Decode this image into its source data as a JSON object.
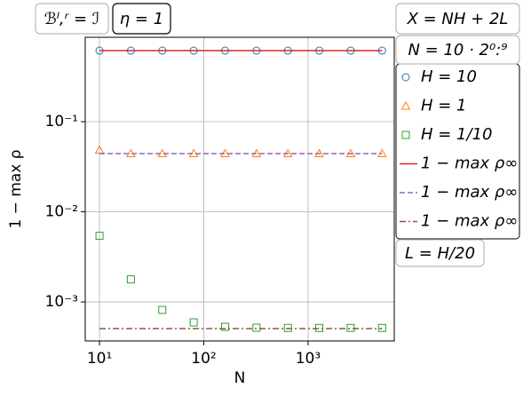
{
  "chart_data": {
    "type": "scatter",
    "xlabel": "N",
    "ylabel": "1 − max ρ",
    "xscale": "log",
    "yscale": "log",
    "xlim": [
      7.3,
      6700
    ],
    "ylim": [
      0.000369,
      0.863
    ],
    "xticks": [
      {
        "value": 10,
        "label": "10¹"
      },
      {
        "value": 100,
        "label": "10²"
      },
      {
        "value": 1000,
        "label": "10³"
      }
    ],
    "yticks": [
      {
        "value": 0.1,
        "label": "10⁻¹"
      },
      {
        "value": 0.01,
        "label": "10⁻²"
      },
      {
        "value": 0.001,
        "label": "10⁻³"
      }
    ],
    "grid": true,
    "legend": "outside right",
    "x": [
      10,
      20,
      40,
      80,
      160,
      320,
      640,
      1280,
      2560,
      5120
    ],
    "series": [
      {
        "name": "H = 10",
        "color": "#1f77b4",
        "marker": "circle",
        "values": [
          0.614,
          0.614,
          0.614,
          0.614,
          0.614,
          0.614,
          0.614,
          0.614,
          0.614,
          0.614
        ]
      },
      {
        "name": "H = 1",
        "color": "#ff7f0e",
        "marker": "triangle",
        "values": [
          0.0484,
          0.0442,
          0.0442,
          0.0442,
          0.0442,
          0.0442,
          0.0442,
          0.0442,
          0.0442,
          0.0442
        ]
      },
      {
        "name": "H = 1/10",
        "color": "#2ca02c",
        "marker": "square",
        "values": [
          0.00542,
          0.00178,
          0.000815,
          0.000593,
          0.00053,
          0.000518,
          0.000515,
          0.000515,
          0.000515,
          0.000515
        ]
      },
      {
        "name": "1 − max ρ∞",
        "color": "#d62728",
        "line": "solid",
        "values": [
          0.614,
          0.614,
          0.614,
          0.614,
          0.614,
          0.614,
          0.614,
          0.614,
          0.614,
          0.614
        ]
      },
      {
        "name": "1 − max ρ∞",
        "color": "#9467bd",
        "line": "dashed",
        "values": [
          0.0442,
          0.0442,
          0.0442,
          0.0442,
          0.0442,
          0.0442,
          0.0442,
          0.0442,
          0.0442,
          0.0442
        ]
      },
      {
        "name": "1 − max ρ∞",
        "color": "#8c564b",
        "line": "dashdot",
        "values": [
          0.000505,
          0.000505,
          0.000505,
          0.000505,
          0.000505,
          0.000505,
          0.000505,
          0.000505,
          0.000505,
          0.000505
        ]
      }
    ],
    "annotations": [
      "ℬˡ,ʳ = ℐ",
      "η = 1",
      "X = NH + 2L",
      "N = 10 · 2⁰:⁹",
      "L = H/20"
    ]
  }
}
